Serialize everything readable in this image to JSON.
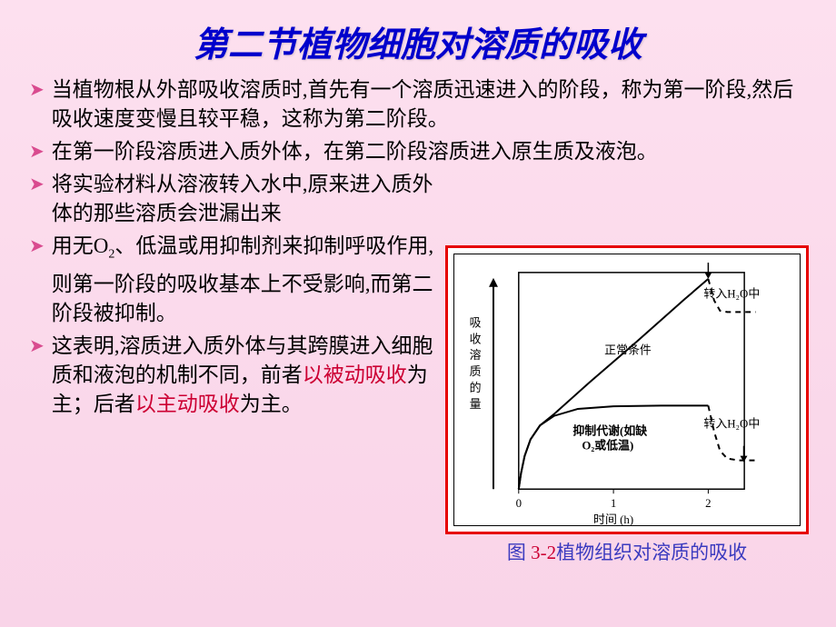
{
  "title": "第二节植物细胞对溶质的吸收",
  "bullets": {
    "b1": "当植物根从外部吸收溶质时,首先有一个溶质迅速进入的阶段，称为第一阶段,然后吸收速度变慢且较平稳，这称为第二阶段。",
    "b2": "在第一阶段溶质进入质外体，在第二阶段溶质进入原生质及液泡。",
    "b3": "将实验材料从溶液转入水中,原来进入质外体的那些溶质会泄漏出来",
    "b4_pre": "用无O",
    "b4_sub": "2",
    "b4_post": "、低温或用抑制剂来抑制呼吸作用,则第一阶段的吸收基本上不受影响,而第二阶段被抑制。",
    "b5_a": "这表明,溶质进入质外体与其跨膜进入细胞质和液泡的机制不同，前者",
    "b5_r1": "以被动吸收",
    "b5_b": "为主；后者",
    "b5_r2": "以主动吸收",
    "b5_c": "为主。"
  },
  "figure": {
    "caption_prefix": "图 ",
    "caption_num": "3-2",
    "caption_text": "植物组织对溶质的吸收",
    "ylabel": "吸收溶质的量",
    "xlabel": "时间 (h)",
    "xticks": [
      "0",
      "1",
      "2"
    ],
    "labels": {
      "normal": "正常条件",
      "inhibit_l1": "抑制代谢(如缺",
      "inhibit_l2": "O₂或低温)",
      "transfer_top": "转入H₂O中",
      "transfer_bot": "转入H₂O中"
    },
    "style": {
      "axis_color": "#000000",
      "line_color": "#000000",
      "line_width": 2,
      "dash_color": "#000000",
      "bg": "#ffffff",
      "border": "#e60000",
      "font_size": 13
    },
    "curves": {
      "normal_solid": [
        [
          0,
          0
        ],
        [
          2,
          25
        ],
        [
          5,
          52
        ],
        [
          10,
          78
        ],
        [
          18,
          100
        ],
        [
          30,
          118
        ],
        [
          60,
          168
        ],
        [
          100,
          232
        ],
        [
          140,
          298
        ],
        [
          160,
          330
        ]
      ],
      "normal_dash": [
        [
          160,
          330
        ],
        [
          165,
          296
        ],
        [
          170,
          280
        ],
        [
          176,
          278
        ],
        [
          186,
          278
        ],
        [
          200,
          278
        ]
      ],
      "inhibit_solid": [
        [
          0,
          0
        ],
        [
          2,
          25
        ],
        [
          5,
          52
        ],
        [
          10,
          78
        ],
        [
          18,
          100
        ],
        [
          30,
          115
        ],
        [
          50,
          126
        ],
        [
          80,
          130
        ],
        [
          120,
          131
        ],
        [
          160,
          131
        ]
      ],
      "inhibit_dash": [
        [
          160,
          131
        ],
        [
          165,
          90
        ],
        [
          170,
          60
        ],
        [
          176,
          48
        ],
        [
          186,
          45
        ],
        [
          200,
          45
        ]
      ]
    }
  }
}
